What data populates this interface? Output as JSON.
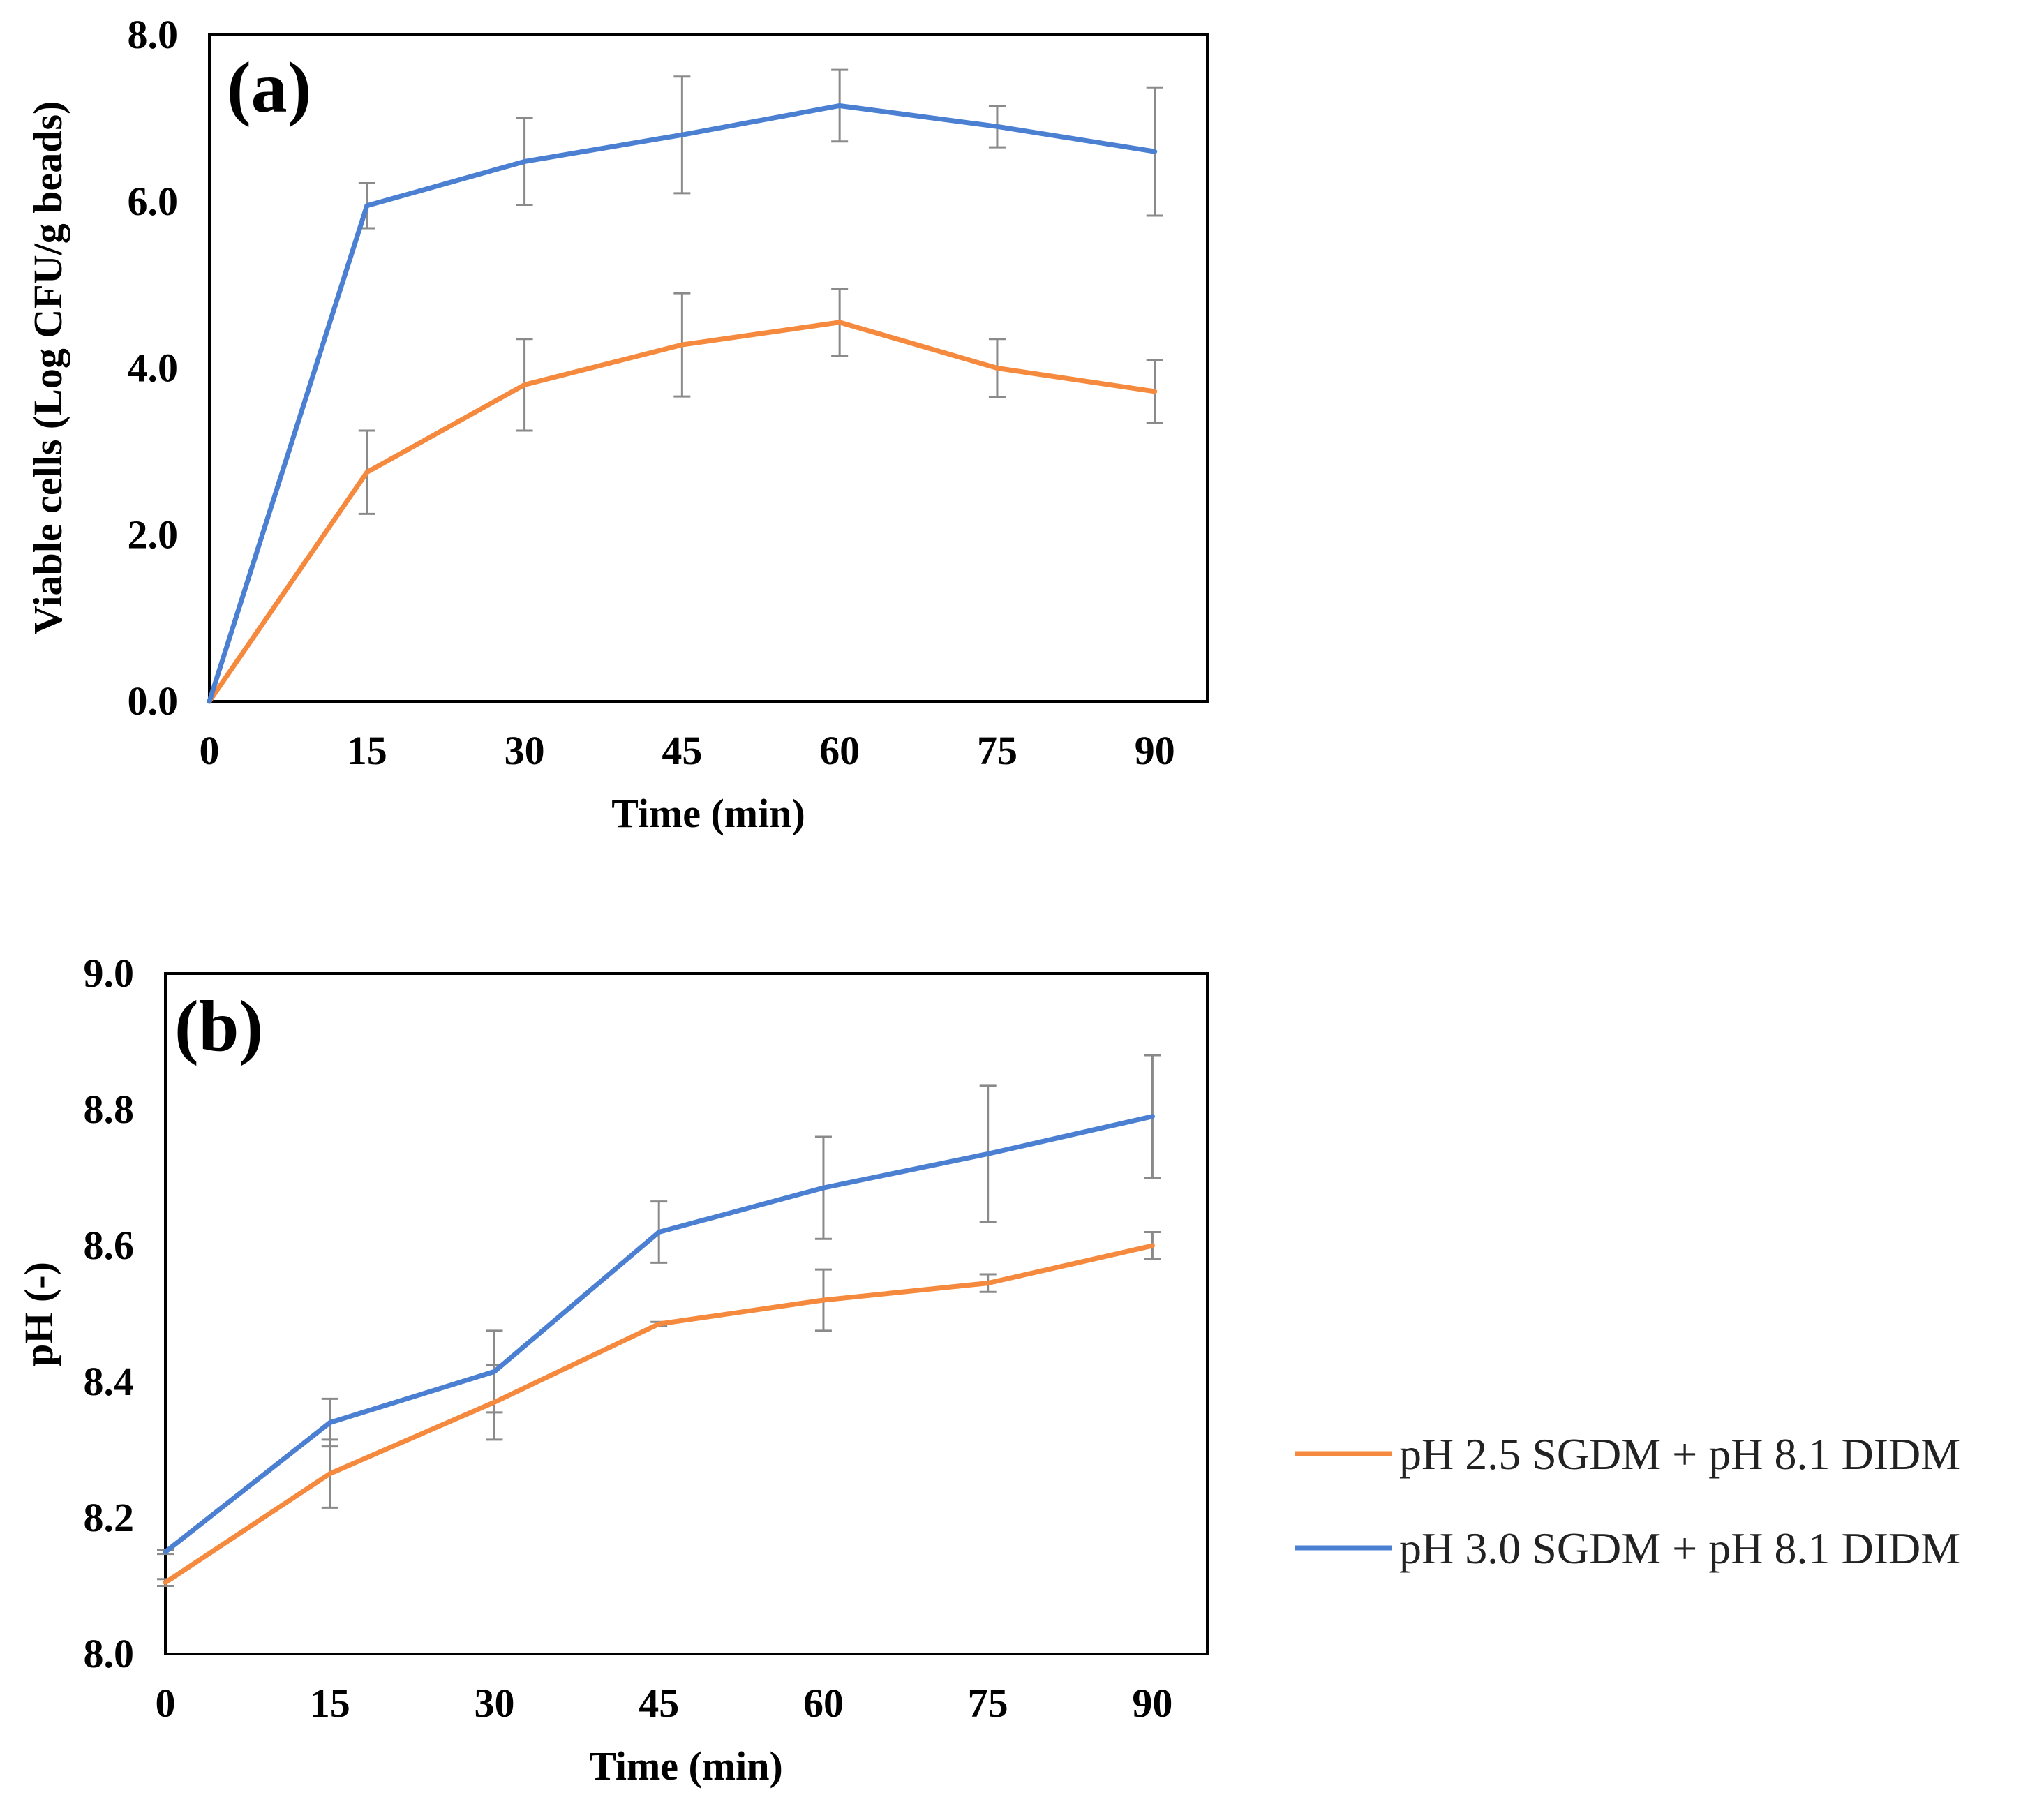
{
  "chart_data": [
    {
      "type": "line",
      "panel_label": "(a)",
      "xlabel": "Time (min)",
      "ylabel": "Viable cells (Log CFU/g beads)",
      "x": [
        0,
        15,
        30,
        45,
        60,
        75,
        90
      ],
      "x_tick_labels": [
        "0",
        "15",
        "30",
        "45",
        "60",
        "75",
        "90"
      ],
      "xlim": [
        0,
        95
      ],
      "ylim": [
        0,
        8
      ],
      "y_ticks": [
        0,
        2,
        4,
        6,
        8
      ],
      "y_tick_labels": [
        "0.0",
        "2.0",
        "4.0",
        "6.0",
        "8.0"
      ],
      "grid": false,
      "series": [
        {
          "name": "pH 2.5 SGDM + pH 8.1 DIDM",
          "color": "#F58A3E",
          "values": [
            0.0,
            2.75,
            3.8,
            4.28,
            4.55,
            4.0,
            3.72
          ],
          "errors": [
            0.0,
            0.5,
            0.55,
            0.62,
            0.4,
            0.35,
            0.38
          ]
        },
        {
          "name": "pH 3.0 SGDM + pH 8.1 DIDM",
          "color": "#4A7FD2",
          "values": [
            0.0,
            5.95,
            6.48,
            6.8,
            7.15,
            6.9,
            6.6
          ],
          "errors": [
            0.0,
            0.27,
            0.52,
            0.7,
            0.43,
            0.25,
            0.77
          ]
        }
      ]
    },
    {
      "type": "line",
      "panel_label": "(b)",
      "xlabel": "Time (min)",
      "ylabel": "pH (-)",
      "x": [
        0,
        15,
        30,
        45,
        60,
        75,
        90
      ],
      "x_tick_labels": [
        "0",
        "15",
        "30",
        "45",
        "60",
        "75",
        "90"
      ],
      "xlim": [
        0,
        95
      ],
      "ylim": [
        8.0,
        9.0
      ],
      "y_ticks": [
        8.0,
        8.2,
        8.4,
        8.6,
        8.8,
        9.0
      ],
      "y_tick_labels": [
        "8.0",
        "8.2",
        "8.4",
        "8.6",
        "8.8",
        "9.0"
      ],
      "grid": false,
      "series": [
        {
          "name": "pH 2.5 SGDM + pH 8.1 DIDM",
          "color": "#F58A3E",
          "values": [
            8.105,
            8.265,
            8.37,
            8.485,
            8.52,
            8.545,
            8.6
          ],
          "errors": [
            0.005,
            0.05,
            0.055,
            0.003,
            0.045,
            0.013,
            0.02
          ]
        },
        {
          "name": "pH 3.0 SGDM + pH 8.1 DIDM",
          "color": "#4A7FD2",
          "values": [
            8.15,
            8.34,
            8.415,
            8.62,
            8.685,
            8.735,
            8.79
          ],
          "errors": [
            0.003,
            0.035,
            0.06,
            0.045,
            0.075,
            0.1,
            0.09
          ]
        }
      ]
    }
  ],
  "legend": {
    "placement": "right, beside panel (b)",
    "items": [
      {
        "label": "pH 2.5 SGDM + pH 8.1 DIDM",
        "color": "#F58A3E"
      },
      {
        "label": "pH 3.0 SGDM + pH 8.1 DIDM",
        "color": "#4A7FD2"
      }
    ]
  }
}
